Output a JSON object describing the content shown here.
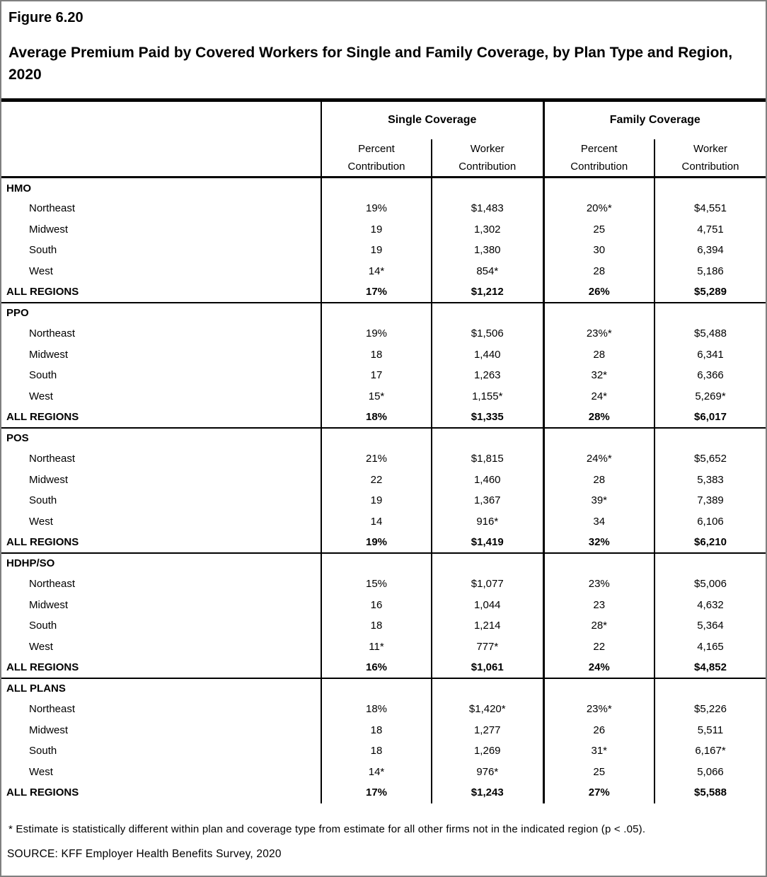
{
  "figure": {
    "label": "Figure 6.20",
    "title": "Average Premium Paid by Covered Workers for Single and Family Coverage, by Plan Type and Region, 2020"
  },
  "table": {
    "groups": [
      {
        "label": "Single Coverage"
      },
      {
        "label": "Family Coverage"
      }
    ],
    "sub_headers": [
      "Percent\nContribution",
      "Worker\nContribution",
      "Percent\nContribution",
      "Worker\nContribution"
    ],
    "sections": [
      {
        "name": "HMO",
        "rows": [
          {
            "label": "Northeast",
            "values": [
              "19%",
              "$1,483",
              "20%*",
              "$4,551"
            ]
          },
          {
            "label": "Midwest",
            "values": [
              "19",
              "1,302",
              "25",
              "4,751"
            ]
          },
          {
            "label": "South",
            "values": [
              "19",
              "1,380",
              "30",
              "6,394"
            ]
          },
          {
            "label": "West",
            "values": [
              "14*",
              "854*",
              "28",
              "5,186"
            ]
          }
        ],
        "total": {
          "label": "ALL REGIONS",
          "values": [
            "17%",
            "$1,212",
            "26%",
            "$5,289"
          ]
        }
      },
      {
        "name": "PPO",
        "rows": [
          {
            "label": "Northeast",
            "values": [
              "19%",
              "$1,506",
              "23%*",
              "$5,488"
            ]
          },
          {
            "label": "Midwest",
            "values": [
              "18",
              "1,440",
              "28",
              "6,341"
            ]
          },
          {
            "label": "South",
            "values": [
              "17",
              "1,263",
              "32*",
              "6,366"
            ]
          },
          {
            "label": "West",
            "values": [
              "15*",
              "1,155*",
              "24*",
              "5,269*"
            ]
          }
        ],
        "total": {
          "label": "ALL REGIONS",
          "values": [
            "18%",
            "$1,335",
            "28%",
            "$6,017"
          ]
        }
      },
      {
        "name": "POS",
        "rows": [
          {
            "label": "Northeast",
            "values": [
              "21%",
              "$1,815",
              "24%*",
              "$5,652"
            ]
          },
          {
            "label": "Midwest",
            "values": [
              "22",
              "1,460",
              "28",
              "5,383"
            ]
          },
          {
            "label": "South",
            "values": [
              "19",
              "1,367",
              "39*",
              "7,389"
            ]
          },
          {
            "label": "West",
            "values": [
              "14",
              "916*",
              "34",
              "6,106"
            ]
          }
        ],
        "total": {
          "label": "ALL REGIONS",
          "values": [
            "19%",
            "$1,419",
            "32%",
            "$6,210"
          ]
        }
      },
      {
        "name": "HDHP/SO",
        "rows": [
          {
            "label": "Northeast",
            "values": [
              "15%",
              "$1,077",
              "23%",
              "$5,006"
            ]
          },
          {
            "label": "Midwest",
            "values": [
              "16",
              "1,044",
              "23",
              "4,632"
            ]
          },
          {
            "label": "South",
            "values": [
              "18",
              "1,214",
              "28*",
              "5,364"
            ]
          },
          {
            "label": "West",
            "values": [
              "11*",
              "777*",
              "22",
              "4,165"
            ]
          }
        ],
        "total": {
          "label": "ALL REGIONS",
          "values": [
            "16%",
            "$1,061",
            "24%",
            "$4,852"
          ]
        }
      },
      {
        "name": "ALL PLANS",
        "rows": [
          {
            "label": "Northeast",
            "values": [
              "18%",
              "$1,420*",
              "23%*",
              "$5,226"
            ]
          },
          {
            "label": "Midwest",
            "values": [
              "18",
              "1,277",
              "26",
              "5,511"
            ]
          },
          {
            "label": "South",
            "values": [
              "18",
              "1,269",
              "31*",
              "6,167*"
            ]
          },
          {
            "label": "West",
            "values": [
              "14*",
              "976*",
              "25",
              "5,066"
            ]
          }
        ],
        "total": {
          "label": "ALL REGIONS",
          "values": [
            "17%",
            "$1,243",
            "27%",
            "$5,588"
          ]
        }
      }
    ]
  },
  "footnote": "* Estimate is statistically different within plan and coverage type from estimate for all other firms not in the indicated region (p < .05).",
  "source": "SOURCE: KFF Employer Health Benefits Survey, 2020"
}
